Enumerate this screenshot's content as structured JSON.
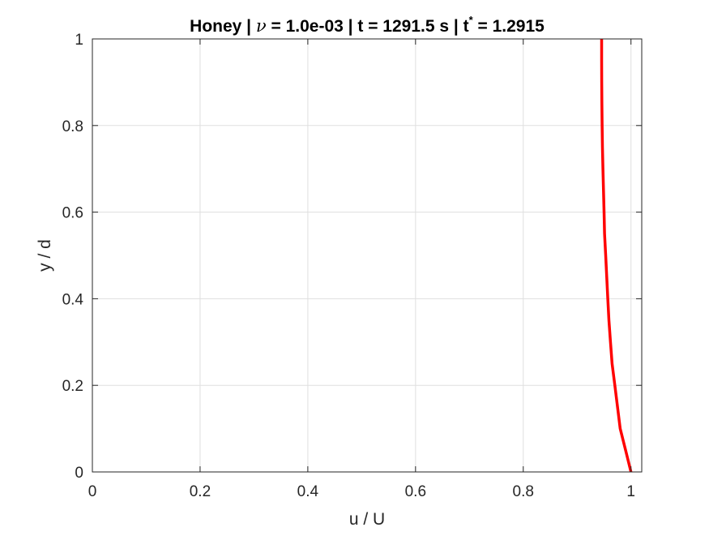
{
  "chart_data": {
    "type": "line",
    "title": {
      "prefix": "Honey | ",
      "nu_symbol": "ν",
      "nu_value": " = 1.0e-03 | t = 1291.5 s | t",
      "superscript": "*",
      "suffix": " = 1.2915"
    },
    "xlabel": "u / U",
    "ylabel": "y / d",
    "xlim": [
      0,
      1.02
    ],
    "ylim": [
      0,
      1
    ],
    "xticks": [
      "0",
      "0.2",
      "0.4",
      "0.6",
      "0.8",
      "1"
    ],
    "xtick_values": [
      0,
      0.2,
      0.4,
      0.6,
      0.8,
      1
    ],
    "yticks": [
      "0",
      "0.2",
      "0.4",
      "0.6",
      "0.8",
      "1"
    ],
    "ytick_values": [
      0,
      0.2,
      0.4,
      0.6,
      0.8,
      1
    ],
    "grid": true,
    "series": [
      {
        "color": "#ff0000",
        "points": [
          {
            "x": 1.0,
            "y": 0.0
          },
          {
            "x": 0.99,
            "y": 0.05
          },
          {
            "x": 0.98,
            "y": 0.1
          },
          {
            "x": 0.975,
            "y": 0.15
          },
          {
            "x": 0.97,
            "y": 0.2
          },
          {
            "x": 0.965,
            "y": 0.25
          },
          {
            "x": 0.962,
            "y": 0.3
          },
          {
            "x": 0.959,
            "y": 0.35
          },
          {
            "x": 0.957,
            "y": 0.4
          },
          {
            "x": 0.955,
            "y": 0.45
          },
          {
            "x": 0.953,
            "y": 0.5
          },
          {
            "x": 0.951,
            "y": 0.55
          },
          {
            "x": 0.95,
            "y": 0.6
          },
          {
            "x": 0.949,
            "y": 0.65
          },
          {
            "x": 0.948,
            "y": 0.7
          },
          {
            "x": 0.947,
            "y": 0.75
          },
          {
            "x": 0.9465,
            "y": 0.8
          },
          {
            "x": 0.946,
            "y": 0.85
          },
          {
            "x": 0.9457,
            "y": 0.9
          },
          {
            "x": 0.9455,
            "y": 0.95
          },
          {
            "x": 0.9455,
            "y": 1.0
          }
        ]
      }
    ]
  }
}
